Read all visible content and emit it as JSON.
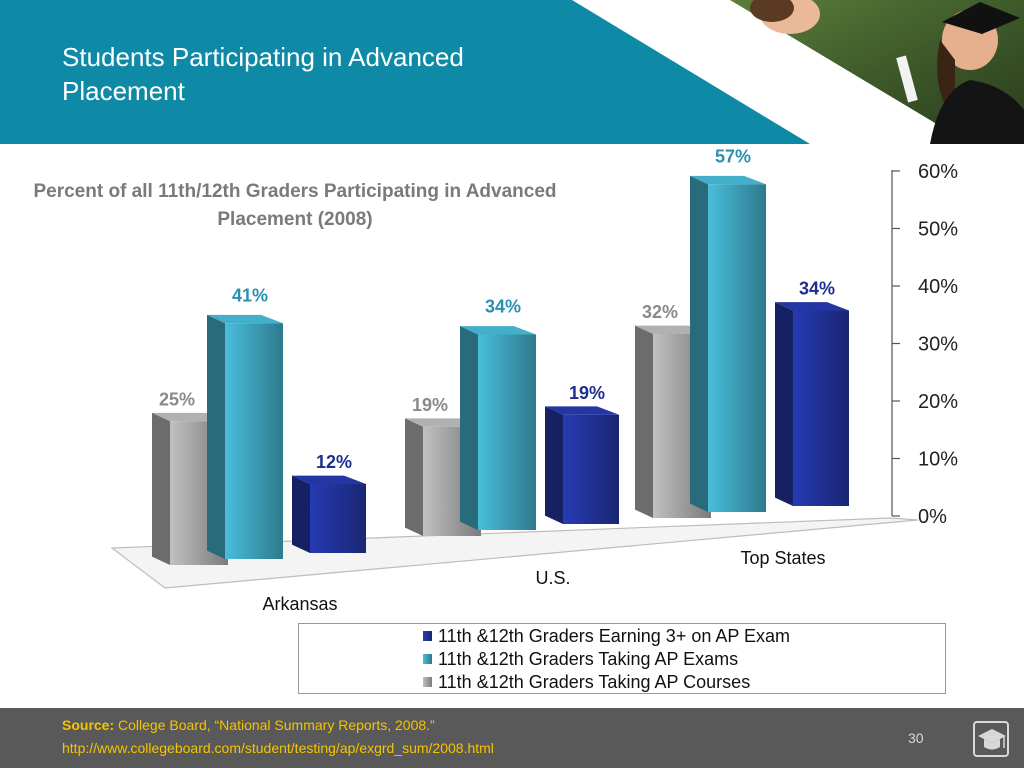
{
  "slide": {
    "title": "Students Participating in Advanced Placement",
    "page_number": "30"
  },
  "footer": {
    "source_label": "Source:",
    "source_text": " College Board, “National Summary Reports, 2008.”",
    "source_url": "http://www.collegeboard.com/student/testing/ap/exgrd_sum/2008.html"
  },
  "colors": {
    "header_band": "#0e8aa7",
    "footer": "#595959",
    "series_earning": "#1f2f8f",
    "series_taking_exams": "#3a98b0",
    "series_courses": "#9a9a9a",
    "source_text": "#f5c400"
  },
  "icons": {
    "footer_icon": "graduation-cap-icon",
    "header_photo": "graduates-photo"
  },
  "chart_data": {
    "type": "bar",
    "title": "Percent of all 11th/12th Graders Participating in Advanced Placement (2008)",
    "categories": [
      "Arkansas",
      "U.S.",
      "Top States"
    ],
    "series": [
      {
        "name": "11th &12th Graders Taking AP Courses",
        "values": [
          25,
          19,
          32
        ],
        "labels": [
          "25%",
          "19%",
          "32%"
        ]
      },
      {
        "name": "11th &12th Graders Taking AP Exams",
        "values": [
          41,
          34,
          57
        ],
        "labels": [
          "41%",
          "34%",
          "57%"
        ]
      },
      {
        "name": "11th &12th Graders Earning 3+ on AP Exam",
        "values": [
          12,
          19,
          34
        ],
        "labels": [
          "12%",
          "19%",
          "34%"
        ]
      }
    ],
    "legend_order": [
      "11th &12th Graders Earning 3+ on AP Exam",
      "11th &12th Graders Taking AP Exams",
      "11th &12th Graders Taking AP Courses"
    ],
    "ylim": [
      0,
      60
    ],
    "yticks": [
      "0%",
      "10%",
      "20%",
      "30%",
      "40%",
      "50%",
      "60%"
    ],
    "axis_position": "right",
    "legend_position": "bottom",
    "grid": false
  }
}
